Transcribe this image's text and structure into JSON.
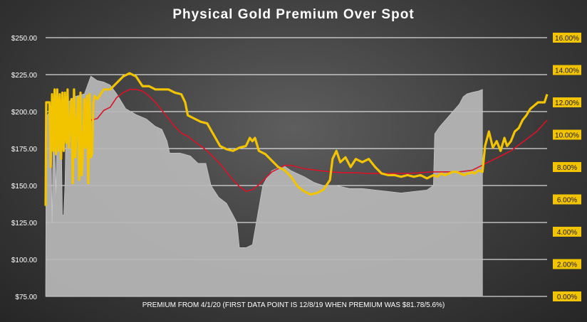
{
  "chart_data": {
    "type": "area",
    "title": "Physical Gold Premium Over Spot",
    "xlabel": "PREMIUM FROM 4/1/20 (FIRST DATA POINT IS 12/8/19 WHEN PREMIUM WAS $81.78/5.6%)",
    "ylim": [
      75,
      250
    ],
    "y2lim": [
      0,
      16
    ],
    "y_ticks": [
      "$75.00",
      "$100.00",
      "$125.00",
      "$150.00",
      "$175.00",
      "$200.00",
      "$225.00",
      "$250.00"
    ],
    "y2_ticks": [
      "0.00%",
      "2.00%",
      "4.00%",
      "6.00%",
      "8.00%",
      "10.00%",
      "12.00%",
      "14.00%",
      "16.00%"
    ],
    "grid": true,
    "colors": {
      "area": "#b8b8b8",
      "percent_line": "#f2c400",
      "moving_average": "#d8132a",
      "right_axis_label_bg": "#f2c400"
    },
    "series": [
      {
        "axis": "left",
        "points": [
          [
            0,
            80
          ],
          [
            0.5,
            196
          ],
          [
            3,
            200
          ],
          [
            4,
            200
          ],
          [
            5,
            125
          ],
          [
            6,
            200
          ],
          [
            7,
            185
          ],
          [
            8,
            145
          ],
          [
            9,
            198
          ],
          [
            10,
            200
          ],
          [
            12,
            198
          ],
          [
            13,
            130
          ],
          [
            14,
            130
          ],
          [
            15,
            152
          ],
          [
            16,
            205
          ],
          [
            22,
            210
          ],
          [
            30,
            212
          ],
          [
            35,
            224
          ],
          [
            40,
            221
          ],
          [
            45,
            220
          ],
          [
            50,
            218
          ],
          [
            55,
            212
          ],
          [
            62,
            202
          ],
          [
            70,
            198
          ],
          [
            78,
            195
          ],
          [
            85,
            190
          ],
          [
            90,
            188
          ],
          [
            94,
            180
          ],
          [
            96,
            172
          ],
          [
            104,
            172
          ],
          [
            112,
            170
          ],
          [
            118,
            165
          ],
          [
            124,
            165
          ],
          [
            128,
            150
          ],
          [
            134,
            142
          ],
          [
            140,
            138
          ],
          [
            145,
            130
          ],
          [
            148,
            125
          ],
          [
            150,
            108
          ],
          [
            155,
            108
          ],
          [
            160,
            110
          ],
          [
            164,
            130
          ],
          [
            168,
            150
          ],
          [
            171,
            155
          ],
          [
            175,
            160
          ],
          [
            180,
            162
          ],
          [
            185,
            163
          ],
          [
            190,
            160
          ],
          [
            195,
            158
          ],
          [
            200,
            156
          ],
          [
            208,
            152
          ],
          [
            215,
            150
          ],
          [
            225,
            150
          ],
          [
            235,
            148
          ],
          [
            245,
            148
          ],
          [
            255,
            147
          ],
          [
            265,
            146
          ],
          [
            275,
            145
          ],
          [
            285,
            146
          ],
          [
            295,
            147
          ],
          [
            300,
            150
          ],
          [
            301,
            185
          ],
          [
            305,
            190
          ],
          [
            310,
            195
          ],
          [
            315,
            200
          ],
          [
            320,
            205
          ],
          [
            323,
            210
          ],
          [
            326,
            212
          ],
          [
            330,
            213
          ],
          [
            335,
            214
          ],
          [
            338,
            215
          ]
        ]
      },
      {
        "axis": "right",
        "points": [
          [
            0,
            5.6
          ],
          [
            0.5,
            12.0
          ],
          [
            3,
            12.0
          ],
          [
            4,
            8.0
          ],
          [
            5,
            12.5
          ],
          [
            6,
            9.0
          ],
          [
            7,
            12.8
          ],
          [
            8,
            8.8
          ],
          [
            9,
            12.8
          ],
          [
            10,
            9.0
          ],
          [
            11,
            12.5
          ],
          [
            12,
            8.5
          ],
          [
            13,
            12.6
          ],
          [
            14,
            9.0
          ],
          [
            15,
            12.6
          ],
          [
            16,
            9.5
          ],
          [
            17,
            12.8
          ],
          [
            18,
            9.2
          ],
          [
            20,
            12.2
          ],
          [
            21,
            7.0
          ],
          [
            22,
            12.8
          ],
          [
            23,
            8.6
          ],
          [
            25,
            12.3
          ],
          [
            26,
            7.2
          ],
          [
            27,
            12.6
          ],
          [
            28,
            7.5
          ],
          [
            29,
            9.0
          ],
          [
            30,
            12.2
          ],
          [
            31,
            9.2
          ],
          [
            32,
            12.4
          ],
          [
            33,
            7.0
          ],
          [
            34,
            12.5
          ],
          [
            35,
            8.6
          ],
          [
            36,
            8.8
          ],
          [
            37,
            12.0
          ],
          [
            38,
            12.4
          ],
          [
            40,
            12.2
          ],
          [
            45,
            12.8
          ],
          [
            50,
            12.8
          ],
          [
            55,
            13.2
          ],
          [
            60,
            13.6
          ],
          [
            65,
            13.8
          ],
          [
            70,
            13.6
          ],
          [
            75,
            13.0
          ],
          [
            80,
            13.0
          ],
          [
            85,
            12.8
          ],
          [
            90,
            12.8
          ],
          [
            95,
            12.8
          ],
          [
            100,
            12.6
          ],
          [
            105,
            12.5
          ],
          [
            108,
            12.0
          ],
          [
            110,
            11.2
          ],
          [
            115,
            11.0
          ],
          [
            120,
            10.8
          ],
          [
            125,
            10.7
          ],
          [
            130,
            10.0
          ],
          [
            135,
            9.3
          ],
          [
            140,
            9.1
          ],
          [
            145,
            9.0
          ],
          [
            150,
            9.2
          ],
          [
            155,
            9.3
          ],
          [
            158,
            9.8
          ],
          [
            160,
            9.6
          ],
          [
            162,
            9.8
          ],
          [
            165,
            9.0
          ],
          [
            170,
            8.8
          ],
          [
            175,
            8.4
          ],
          [
            180,
            8.0
          ],
          [
            185,
            7.8
          ],
          [
            190,
            7.4
          ],
          [
            195,
            6.8
          ],
          [
            200,
            6.5
          ],
          [
            205,
            6.3
          ],
          [
            210,
            6.4
          ],
          [
            215,
            6.6
          ],
          [
            220,
            7.2
          ],
          [
            222,
            8.5
          ],
          [
            225,
            9.0
          ],
          [
            228,
            8.3
          ],
          [
            232,
            8.6
          ],
          [
            236,
            8.0
          ],
          [
            240,
            8.5
          ],
          [
            245,
            8.3
          ],
          [
            250,
            8.5
          ],
          [
            255,
            8.0
          ],
          [
            260,
            7.6
          ],
          [
            265,
            7.5
          ],
          [
            270,
            7.5
          ],
          [
            275,
            7.4
          ],
          [
            280,
            7.5
          ],
          [
            285,
            7.4
          ],
          [
            290,
            7.5
          ],
          [
            295,
            7.3
          ],
          [
            300,
            7.5
          ],
          [
            303,
            7.4
          ],
          [
            306,
            7.6
          ],
          [
            309,
            7.5
          ],
          [
            312,
            7.6
          ],
          [
            315,
            7.7
          ],
          [
            318,
            7.7
          ],
          [
            321,
            7.6
          ],
          [
            324,
            7.5
          ],
          [
            326,
            7.6
          ],
          [
            328,
            7.6
          ],
          [
            330,
            7.7
          ],
          [
            332,
            7.6
          ],
          [
            335,
            7.8
          ],
          [
            338,
            7.7
          ],
          [
            340,
            9.3
          ],
          [
            343,
            10.2
          ],
          [
            346,
            9.2
          ],
          [
            349,
            9.6
          ],
          [
            352,
            9.0
          ],
          [
            355,
            9.8
          ],
          [
            357,
            9.3
          ],
          [
            360,
            9.6
          ],
          [
            363,
            10.2
          ],
          [
            366,
            10.4
          ],
          [
            369,
            10.9
          ],
          [
            372,
            11.2
          ],
          [
            375,
            11.6
          ],
          [
            378,
            11.8
          ],
          [
            381,
            12.0
          ],
          [
            384,
            12.0
          ],
          [
            386,
            12.0
          ],
          [
            388,
            12.5
          ]
        ]
      },
      {
        "axis": "right",
        "points": [
          [
            30,
            10.8
          ],
          [
            40,
            11.0
          ],
          [
            45,
            11.5
          ],
          [
            50,
            11.7
          ],
          [
            55,
            12.3
          ],
          [
            60,
            12.6
          ],
          [
            65,
            12.8
          ],
          [
            70,
            12.8
          ],
          [
            75,
            12.7
          ],
          [
            80,
            12.4
          ],
          [
            85,
            12.0
          ],
          [
            90,
            11.5
          ],
          [
            95,
            11.0
          ],
          [
            100,
            10.5
          ],
          [
            105,
            10.1
          ],
          [
            110,
            9.9
          ],
          [
            115,
            9.6
          ],
          [
            120,
            9.3
          ],
          [
            125,
            9.0
          ],
          [
            130,
            8.6
          ],
          [
            135,
            8.2
          ],
          [
            140,
            7.7
          ],
          [
            145,
            7.2
          ],
          [
            150,
            6.8
          ],
          [
            155,
            6.5
          ],
          [
            160,
            6.6
          ],
          [
            165,
            6.9
          ],
          [
            170,
            7.3
          ],
          [
            175,
            7.7
          ],
          [
            180,
            7.9
          ],
          [
            185,
            8.1
          ],
          [
            190,
            8.1
          ],
          [
            195,
            8.0
          ],
          [
            200,
            7.9
          ],
          [
            210,
            7.8
          ],
          [
            220,
            7.7
          ],
          [
            230,
            7.65
          ],
          [
            240,
            7.65
          ],
          [
            250,
            7.6
          ],
          [
            260,
            7.6
          ],
          [
            270,
            7.6
          ],
          [
            280,
            7.6
          ],
          [
            290,
            7.65
          ],
          [
            300,
            7.7
          ],
          [
            310,
            7.7
          ],
          [
            320,
            7.7
          ],
          [
            330,
            7.8
          ],
          [
            340,
            8.2
          ],
          [
            350,
            8.6
          ],
          [
            360,
            9.0
          ],
          [
            370,
            9.6
          ],
          [
            380,
            10.2
          ],
          [
            388,
            10.9
          ]
        ]
      }
    ]
  }
}
